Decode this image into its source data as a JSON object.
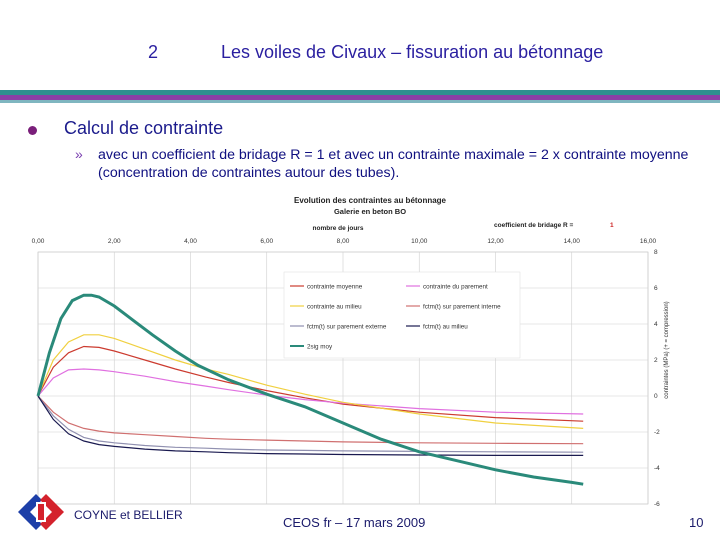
{
  "header": {
    "number": "2",
    "title": "Les voiles de Civaux – fissuration au bétonnage"
  },
  "body": {
    "bullet": "Calcul de contrainte",
    "sub_marker": "»",
    "sub_text": "avec un coefficient de bridage R = 1  et avec un contrainte maximale = 2 x contrainte moyenne (concentration de contraintes autour des tubes)."
  },
  "footer": {
    "company": "COYNE et BELLIER",
    "event": "CEOS fr – 17 mars 2009",
    "page": "10"
  },
  "colors": {
    "band_teal": "#2f8f8f",
    "band_purple": "#8b3fa6",
    "accent": "#2a1fa0"
  },
  "chart_data": {
    "type": "line",
    "title": "Evolution des contraintes au bétonnage",
    "subtitle": "Galerie en beton BO",
    "xlabel": "nombre de jours",
    "ylabel": "contraintes (MPa) (+ = compression)",
    "coef_label": "coefficient de bridage R =",
    "coef_value": "1",
    "xlim": [
      0,
      16
    ],
    "ylim": [
      -6,
      8
    ],
    "x_ticks": [
      "0,00",
      "2,00",
      "4,00",
      "6,00",
      "8,00",
      "10,00",
      "12,00",
      "14,00",
      "16,00"
    ],
    "y_ticks": [
      "8",
      "6",
      "4",
      "2",
      "0",
      "-2",
      "-4",
      "-6"
    ],
    "grid": true,
    "series": [
      {
        "name": "contrainte moyenne",
        "color": "#cc3b2f",
        "x": [
          0,
          0.4,
          0.8,
          1.2,
          1.6,
          2,
          2.8,
          3.6,
          4.4,
          5,
          6,
          7,
          8,
          10,
          12,
          14.3
        ],
        "y": [
          0,
          1.6,
          2.4,
          2.75,
          2.7,
          2.5,
          2.0,
          1.5,
          1.05,
          0.75,
          0.3,
          -0.1,
          -0.45,
          -0.9,
          -1.2,
          -1.4
        ]
      },
      {
        "name": "contrainte du parement",
        "color": "#e070e0",
        "x": [
          0,
          0.4,
          0.8,
          1.2,
          1.6,
          2,
          2.8,
          3.6,
          4.4,
          5,
          6,
          7,
          8,
          10,
          12,
          14.3
        ],
        "y": [
          0,
          1.0,
          1.45,
          1.5,
          1.45,
          1.35,
          1.1,
          0.8,
          0.55,
          0.35,
          0.05,
          -0.2,
          -0.4,
          -0.7,
          -0.9,
          -1.0
        ]
      },
      {
        "name": "contrainte au milieu",
        "color": "#f0d040",
        "x": [
          0,
          0.4,
          0.8,
          1.2,
          1.6,
          2,
          2.8,
          3.6,
          4.4,
          5,
          6,
          7,
          8,
          10,
          12,
          14.3
        ],
        "y": [
          0,
          2.0,
          3.0,
          3.4,
          3.4,
          3.2,
          2.6,
          2.0,
          1.5,
          1.2,
          0.6,
          0.1,
          -0.35,
          -1.0,
          -1.5,
          -1.8
        ]
      },
      {
        "name": "fctm(t) sur parement interne",
        "color": "#d07070",
        "x": [
          0,
          0.4,
          0.8,
          1.2,
          1.6,
          2,
          2.8,
          3.6,
          4.4,
          5,
          6,
          7,
          8,
          10,
          12,
          14.3
        ],
        "y": [
          0,
          -0.9,
          -1.5,
          -1.8,
          -1.95,
          -2.05,
          -2.15,
          -2.25,
          -2.35,
          -2.4,
          -2.45,
          -2.5,
          -2.55,
          -2.6,
          -2.63,
          -2.65
        ]
      },
      {
        "name": "fctm(t) sur parement externe",
        "color": "#9090b0",
        "x": [
          0,
          0.4,
          0.8,
          1.2,
          1.6,
          2,
          2.8,
          3.6,
          4.4,
          5,
          6,
          7,
          8,
          10,
          12,
          14.3
        ],
        "y": [
          0,
          -1.1,
          -1.85,
          -2.3,
          -2.5,
          -2.6,
          -2.75,
          -2.85,
          -2.9,
          -2.95,
          -3.0,
          -3.02,
          -3.05,
          -3.08,
          -3.1,
          -3.12
        ]
      },
      {
        "name": "fctm(t) au milieu",
        "color": "#1a1a50",
        "x": [
          0,
          0.4,
          0.8,
          1.2,
          1.6,
          2,
          2.8,
          3.6,
          4.4,
          5,
          6,
          7,
          8,
          10,
          12,
          14.3
        ],
        "y": [
          0,
          -1.3,
          -2.1,
          -2.5,
          -2.7,
          -2.8,
          -2.95,
          -3.05,
          -3.1,
          -3.15,
          -3.2,
          -3.22,
          -3.25,
          -3.28,
          -3.3,
          -3.3
        ]
      },
      {
        "name": "2sig moy",
        "color": "#2a8a7a",
        "x": [
          0,
          0.3,
          0.6,
          0.9,
          1.2,
          1.4,
          1.6,
          2,
          2.5,
          3,
          3.6,
          4.2,
          5,
          6,
          7,
          8,
          9,
          10,
          11,
          12,
          13,
          14,
          14.3
        ],
        "y": [
          0,
          2.4,
          4.3,
          5.3,
          5.6,
          5.6,
          5.5,
          5.0,
          4.2,
          3.4,
          2.5,
          1.7,
          0.9,
          0.1,
          -0.6,
          -1.5,
          -2.4,
          -3.1,
          -3.6,
          -4.1,
          -4.5,
          -4.8,
          -4.9
        ]
      }
    ]
  }
}
